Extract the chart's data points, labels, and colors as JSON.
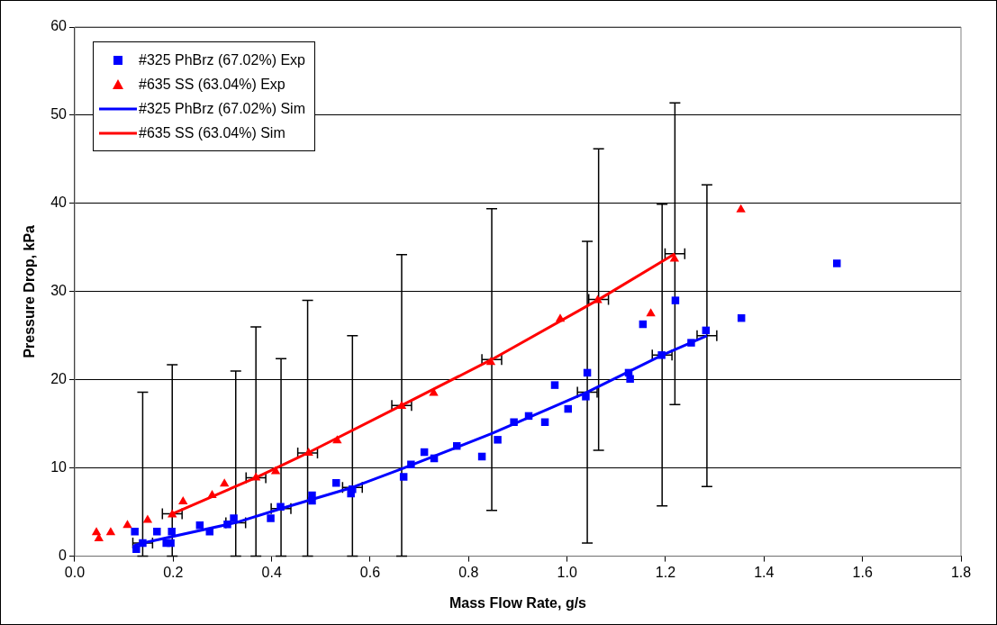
{
  "chart_data": {
    "type": "scatter",
    "xlabel": "Mass Flow Rate, g/s",
    "ylabel": "Pressure Drop, kPa",
    "xlim": [
      0,
      1.8
    ],
    "xticks": [
      {
        "value": 0,
        "label": "0.0"
      },
      {
        "value": 0.2,
        "label": "0.2"
      },
      {
        "value": 0.4,
        "label": "0.4"
      },
      {
        "value": 0.6,
        "label": "0.6"
      },
      {
        "value": 0.8,
        "label": "0.8"
      },
      {
        "value": 1,
        "label": "1.0"
      },
      {
        "value": 1.2,
        "label": "1.2"
      },
      {
        "value": 1.4,
        "label": "1.4"
      },
      {
        "value": 1.6,
        "label": "1.6"
      },
      {
        "value": 1.8,
        "label": "1.8"
      }
    ],
    "ylim": [
      0,
      60
    ],
    "yticks": [
      0,
      10,
      20,
      30,
      40,
      50,
      60
    ],
    "grid": "y",
    "legend": "top left",
    "series": [
      {
        "name": "#325 PhBrz (67.02%) Exp",
        "type": "scatter",
        "marker": "square",
        "color": "#0000ff",
        "x": [
          0.122,
          0.125,
          0.138,
          0.167,
          0.186,
          0.195,
          0.197,
          0.254,
          0.274,
          0.31,
          0.323,
          0.398,
          0.418,
          0.482,
          0.482,
          0.531,
          0.561,
          0.564,
          0.668,
          0.683,
          0.71,
          0.73,
          0.776,
          0.827,
          0.859,
          0.892,
          0.922,
          0.955,
          0.975,
          1.002,
          1.038,
          1.041,
          1.125,
          1.128,
          1.154,
          1.192,
          1.22,
          1.252,
          1.282,
          1.354,
          1.548
        ],
        "values": [
          2.8,
          0.8,
          1.5,
          2.8,
          1.5,
          1.5,
          2.8,
          3.5,
          2.8,
          3.6,
          4.3,
          4.3,
          5.6,
          6.9,
          6.3,
          8.3,
          7.1,
          7.6,
          9.0,
          10.4,
          11.8,
          11.1,
          12.5,
          11.3,
          13.2,
          15.2,
          15.9,
          15.2,
          19.4,
          16.7,
          18.1,
          20.8,
          20.8,
          20.1,
          26.3,
          22.8,
          29.0,
          24.2,
          25.6,
          27.0,
          33.2
        ]
      },
      {
        "name": "#635 SS (63.04%) Exp",
        "type": "scatter",
        "marker": "triangle",
        "color": "#ff0000",
        "x": [
          0.044,
          0.049,
          0.073,
          0.107,
          0.148,
          0.198,
          0.22,
          0.279,
          0.304,
          0.368,
          0.408,
          0.475,
          0.533,
          0.664,
          0.729,
          0.845,
          0.986,
          1.062,
          1.17,
          1.218,
          1.353
        ],
        "values": [
          2.7,
          2.0,
          2.7,
          3.5,
          4.1,
          4.7,
          6.2,
          6.9,
          8.2,
          8.9,
          9.6,
          11.7,
          13.1,
          17.0,
          18.5,
          22.0,
          26.9,
          29.0,
          27.5,
          33.7,
          39.3
        ]
      },
      {
        "name": "#325 PhBrz (67.02%) Sim",
        "type": "line",
        "marker": "none",
        "line_style": "solid",
        "color": "#0000ff",
        "x": [
          0.12,
          0.138,
          0.327,
          0.419,
          0.564,
          0.664,
          0.847,
          1.041,
          1.193,
          1.284
        ],
        "values": [
          1.2,
          1.5,
          3.8,
          5.4,
          7.8,
          9.9,
          13.9,
          18.6,
          22.8,
          25.0
        ],
        "errors": [
          null,
          [
            0,
            18.6
          ],
          [
            0,
            21.0
          ],
          [
            0,
            22.4
          ],
          [
            0,
            25.0
          ],
          null,
          null,
          17.1,
          17.1,
          17.1
        ],
        "xerrors": [
          null,
          0.02,
          0.02,
          0.02,
          0.02,
          null,
          null,
          0.02,
          0.02,
          0.02
        ]
      },
      {
        "name": "#635 SS (63.04%) Sim",
        "type": "line",
        "marker": "none",
        "line_style": "solid",
        "color": "#ff0000",
        "x": [
          0.198,
          0.368,
          0.473,
          0.664,
          0.847,
          1.064,
          1.219
        ],
        "values": [
          4.8,
          8.9,
          11.7,
          17.1,
          22.3,
          29.1,
          34.3
        ],
        "errors": [
          [
            0,
            21.7
          ],
          [
            0,
            26.0
          ],
          [
            0,
            29.0
          ],
          [
            0,
            34.2
          ],
          17.1,
          17.1,
          17.1
        ],
        "xerrors": [
          0.02,
          0.02,
          0.02,
          0.02,
          0.02,
          0.02,
          0.02
        ]
      }
    ]
  }
}
